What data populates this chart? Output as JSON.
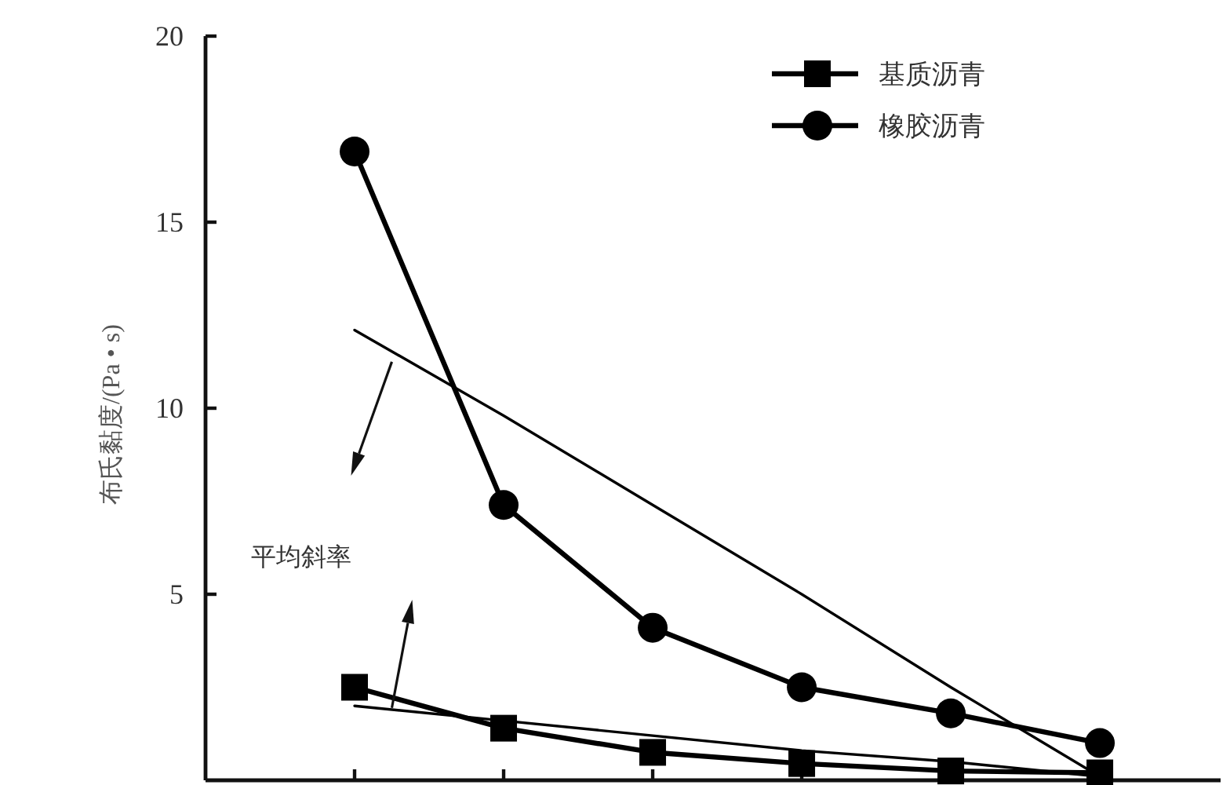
{
  "chart_data": {
    "type": "line",
    "ylabel": "布氏黏度/(Pa • s)",
    "categories": [
      null,
      null,
      null,
      null,
      null,
      null
    ],
    "ylim": [
      0,
      20
    ],
    "yticks": [
      5,
      10,
      15,
      20
    ],
    "tick_labels": "y",
    "legend": "top right",
    "series": [
      {
        "name": "基质沥青",
        "color": "#000000",
        "marker": "square",
        "values": [
          2.5,
          1.4,
          0.75,
          0.45,
          0.25,
          0.2
        ]
      },
      {
        "name": "橡胶沥青",
        "color": "#000000",
        "marker": "circle",
        "values": [
          16.9,
          7.4,
          4.1,
          2.5,
          1.8,
          1.0
        ]
      },
      {
        "type": "line",
        "color": "#000000",
        "marker": "none",
        "values": [
          12.1,
          9.8,
          7.4,
          5.0,
          2.5,
          0.1
        ]
      },
      {
        "type": "line",
        "color": "#000000",
        "marker": "none",
        "values": [
          2.0,
          1.6,
          1.2,
          0.8,
          0.5,
          0.1
        ]
      }
    ],
    "annotations": [
      "平均斜率"
    ]
  }
}
